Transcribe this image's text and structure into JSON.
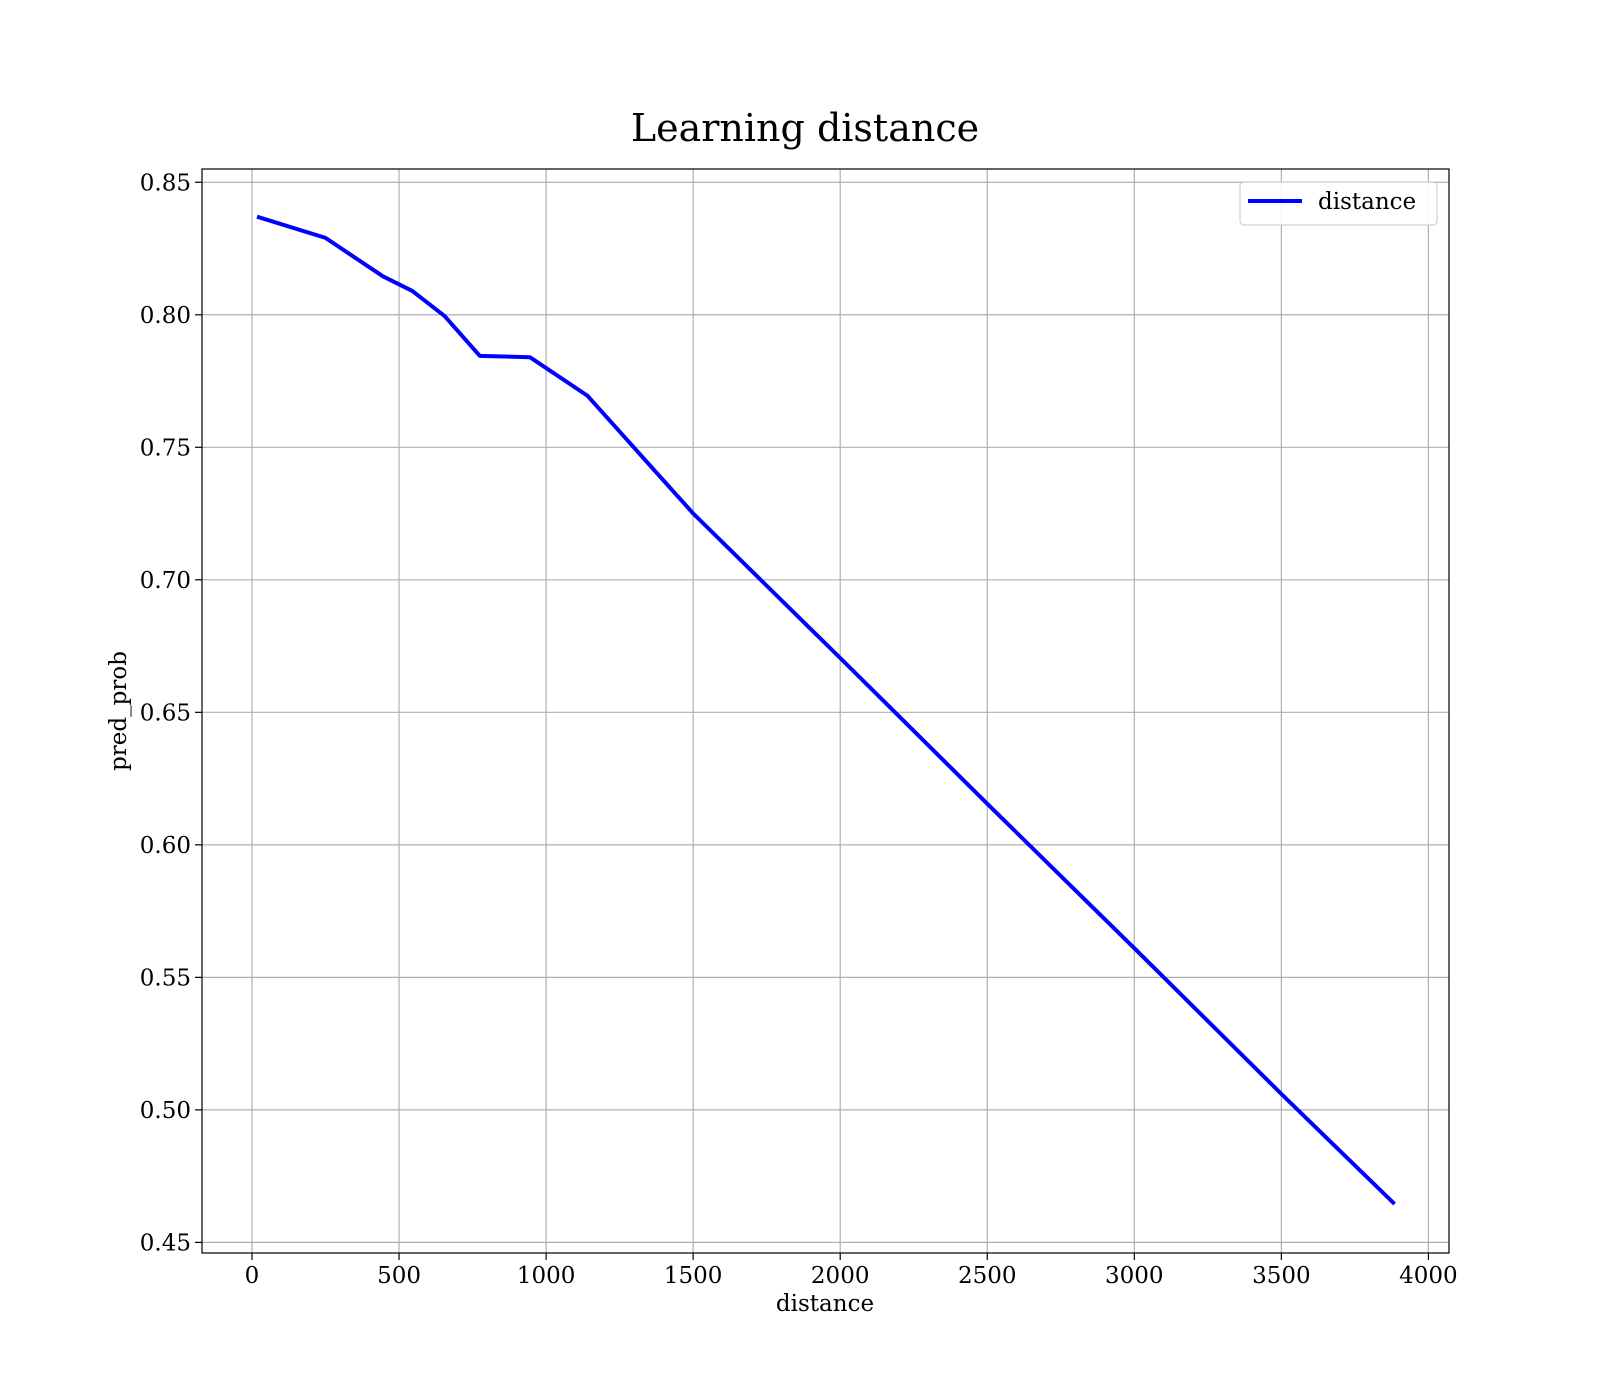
{
  "chart_data": {
    "type": "line",
    "title": "Learning distance",
    "xlabel": "distance",
    "ylabel": "pred_prob",
    "xlim": [
      -170,
      4070
    ],
    "ylim": [
      0.446,
      0.855
    ],
    "xticks": [
      0,
      500,
      1000,
      1500,
      2000,
      2500,
      3000,
      3500,
      4000
    ],
    "yticks": [
      0.45,
      0.5,
      0.55,
      0.6,
      0.65,
      0.7,
      0.75,
      0.8,
      0.85
    ],
    "xtick_labels": [
      "0",
      "500",
      "1000",
      "1500",
      "2000",
      "2500",
      "3000",
      "3500",
      "4000"
    ],
    "ytick_labels": [
      "0.45",
      "0.50",
      "0.55",
      "0.60",
      "0.65",
      "0.70",
      "0.75",
      "0.80",
      "0.85"
    ],
    "grid": true,
    "legend": {
      "position": "top-right",
      "entries": [
        "distance"
      ]
    },
    "series": [
      {
        "name": "distance",
        "color": "#0000ff",
        "x": [
          17,
          250,
          445,
          545,
          655,
          775,
          945,
          1140,
          1500,
          2000,
          2500,
          3000,
          3500,
          3885
        ],
        "y": [
          0.837,
          0.829,
          0.8145,
          0.809,
          0.7995,
          0.7845,
          0.784,
          0.7695,
          0.725,
          0.6705,
          0.6155,
          0.561,
          0.506,
          0.4645
        ]
      }
    ]
  }
}
